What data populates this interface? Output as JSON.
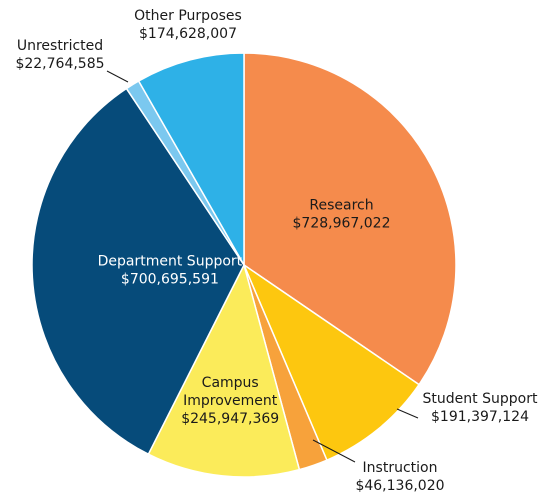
{
  "chart_data": {
    "type": "pie",
    "title": "",
    "start": "top",
    "direction": "clockwise",
    "slices": [
      {
        "name": "Research",
        "value": 728967022,
        "value_label": "$728,967,022",
        "color": "#F58B4C"
      },
      {
        "name": "Student Support",
        "value": 191397124,
        "value_label": "$191,397,124",
        "color": "#FDC70F"
      },
      {
        "name": "Instruction",
        "value": 46136020,
        "value_label": "$46,136,020",
        "color": "#F7A23B"
      },
      {
        "name": "Campus\nImprovement",
        "value": 245947369,
        "value_label": "$245,947,369",
        "color": "#FBEB5A"
      },
      {
        "name": "Department Support",
        "value": 700695591,
        "value_label": "$700,695,591",
        "color": "#064B7A"
      },
      {
        "name": "Unrestricted",
        "value": 22764585,
        "value_label": "$22,764,585",
        "color": "#7BC8EF"
      },
      {
        "name": "Other Purposes",
        "value": 174628007,
        "value_label": "$174,628,007",
        "color": "#2EB1E7"
      }
    ]
  }
}
